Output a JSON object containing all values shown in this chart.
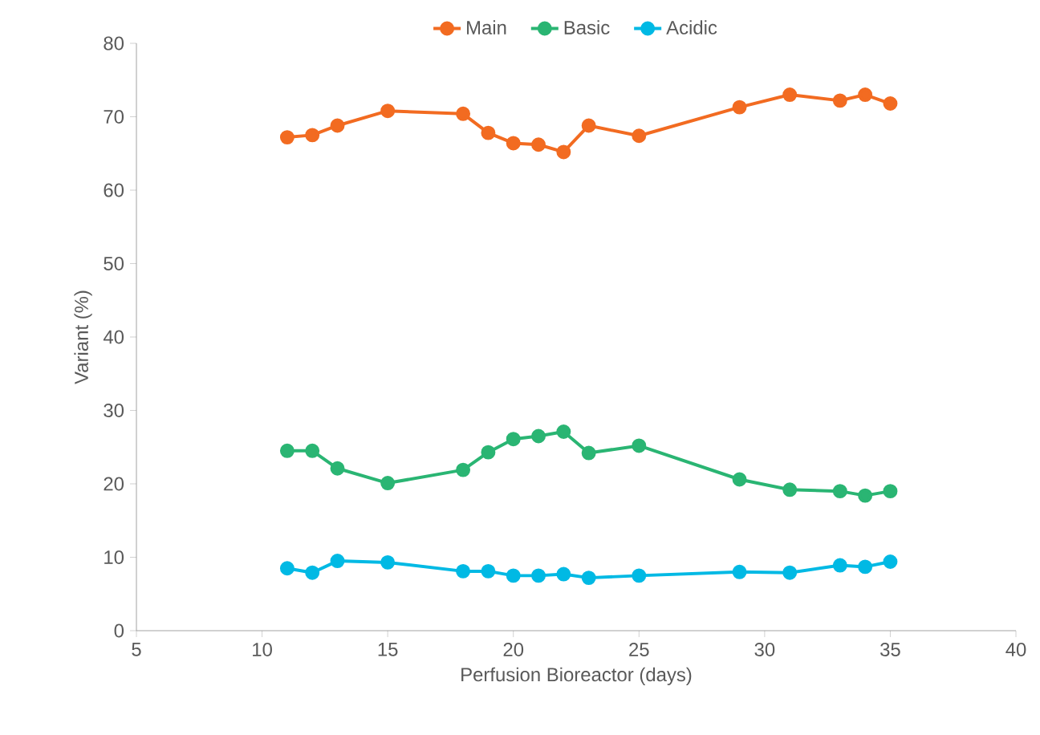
{
  "chart_data": {
    "type": "line",
    "xlabel": "Perfusion Bioreactor (days)",
    "ylabel": "Variant (%)",
    "x": [
      11,
      12,
      13,
      15,
      18,
      19,
      20,
      21,
      22,
      23,
      25,
      29,
      31,
      33,
      34,
      35
    ],
    "series": [
      {
        "name": "Main",
        "color": "#f26b21",
        "values": [
          67.2,
          67.5,
          68.8,
          70.8,
          70.4,
          67.8,
          66.4,
          66.2,
          65.2,
          68.8,
          67.4,
          71.3,
          73.0,
          72.2,
          73.0,
          71.8
        ]
      },
      {
        "name": "Basic",
        "color": "#2ab573",
        "values": [
          24.5,
          24.5,
          22.1,
          20.1,
          21.9,
          24.3,
          26.1,
          26.5,
          27.1,
          24.2,
          25.2,
          20.6,
          19.2,
          19.0,
          18.4,
          19.0
        ]
      },
      {
        "name": "Acidic",
        "color": "#00b9e4",
        "values": [
          8.5,
          7.9,
          9.5,
          9.3,
          8.1,
          8.1,
          7.5,
          7.5,
          7.7,
          7.2,
          7.5,
          8.0,
          7.9,
          8.9,
          8.7,
          9.4
        ]
      }
    ],
    "xlim": [
      5,
      40
    ],
    "xticks": [
      5,
      10,
      15,
      20,
      25,
      30,
      35,
      40
    ],
    "ylim": [
      0,
      80
    ],
    "yticks": [
      0,
      10,
      20,
      30,
      40,
      50,
      60,
      70,
      80
    ],
    "grid": false,
    "legend": "top",
    "marker": "circle",
    "line_style": "solid"
  }
}
